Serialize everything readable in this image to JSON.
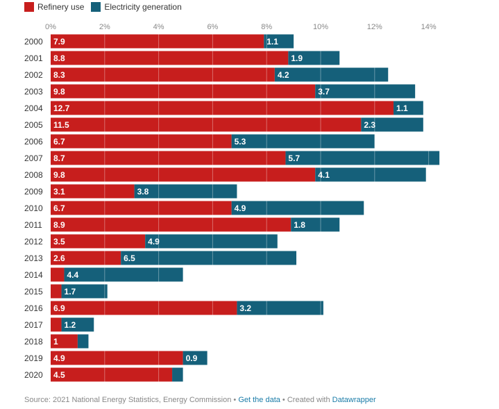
{
  "legend": {
    "items": [
      {
        "label": "Refinery use",
        "color": "#c71e1d"
      },
      {
        "label": "Electricity generation",
        "color": "#15607a"
      }
    ]
  },
  "chart_data": {
    "type": "bar",
    "orientation": "horizontal",
    "stacked": true,
    "categories": [
      "2000",
      "2001",
      "2002",
      "2003",
      "2004",
      "2005",
      "2006",
      "2007",
      "2008",
      "2009",
      "2010",
      "2011",
      "2012",
      "2013",
      "2014",
      "2015",
      "2016",
      "2017",
      "2018",
      "2019",
      "2020"
    ],
    "series": [
      {
        "name": "Refinery use",
        "color": "#c71e1d",
        "values": [
          7.9,
          8.8,
          8.3,
          9.8,
          12.7,
          11.5,
          6.7,
          8.7,
          9.8,
          3.1,
          6.7,
          8.9,
          3.5,
          2.6,
          0.5,
          0.4,
          6.9,
          0.4,
          1,
          4.9,
          4.5
        ],
        "labels": [
          "7.9",
          "8.8",
          "8.3",
          "9.8",
          "12.7",
          "11.5",
          "6.7",
          "8.7",
          "9.8",
          "3.1",
          "6.7",
          "8.9",
          "3.5",
          "2.6",
          "",
          "",
          "6.9",
          "",
          "1",
          "4.9",
          "4.5"
        ]
      },
      {
        "name": "Electricity generation",
        "color": "#15607a",
        "values": [
          1.1,
          1.9,
          4.2,
          3.7,
          1.1,
          2.3,
          5.3,
          5.7,
          4.1,
          3.8,
          4.9,
          1.8,
          4.9,
          6.5,
          4.4,
          1.7,
          3.2,
          1.2,
          0.4,
          0.9,
          0.4
        ],
        "labels": [
          "1.1",
          "1.9",
          "4.2",
          "3.7",
          "1.1",
          "2.3",
          "5.3",
          "5.7",
          "4.1",
          "3.8",
          "4.9",
          "1.8",
          "4.9",
          "6.5",
          "4.4",
          "1.7",
          "3.2",
          "1.2",
          "",
          "0.9",
          ""
        ]
      }
    ],
    "xlim": [
      0,
      14.5
    ],
    "xticks": [
      "0%",
      "2%",
      "4%",
      "6%",
      "8%",
      "10%",
      "12%",
      "14%"
    ],
    "xtick_values": [
      0,
      2,
      4,
      6,
      8,
      10,
      12,
      14
    ],
    "grid": true,
    "legend_position": "top-left"
  },
  "footer": {
    "source": "Source: 2021 National Energy Statistics, Energy Commission",
    "sep1": " • ",
    "get_data": "Get the data",
    "sep2": " • Created with ",
    "datawrapper": "Datawrapper"
  }
}
